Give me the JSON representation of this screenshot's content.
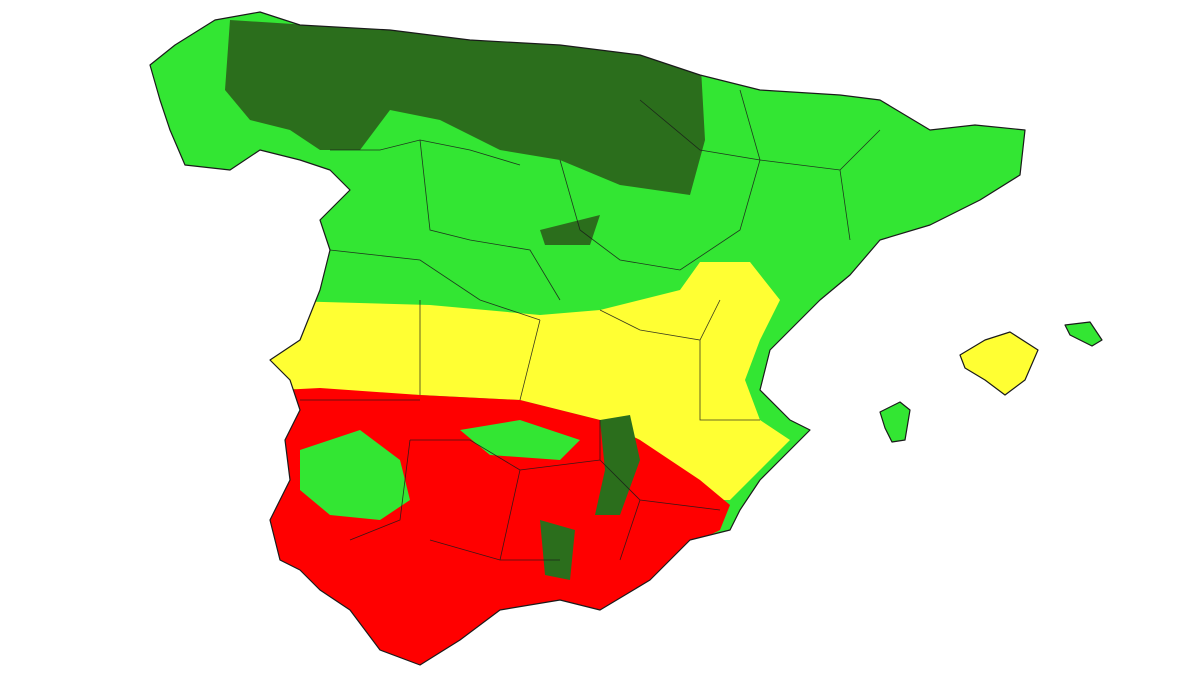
{
  "map": {
    "zone_colors": [
      "#2b6e1c",
      "#33e633",
      "#ffff33",
      "#ff0000"
    ]
  }
}
